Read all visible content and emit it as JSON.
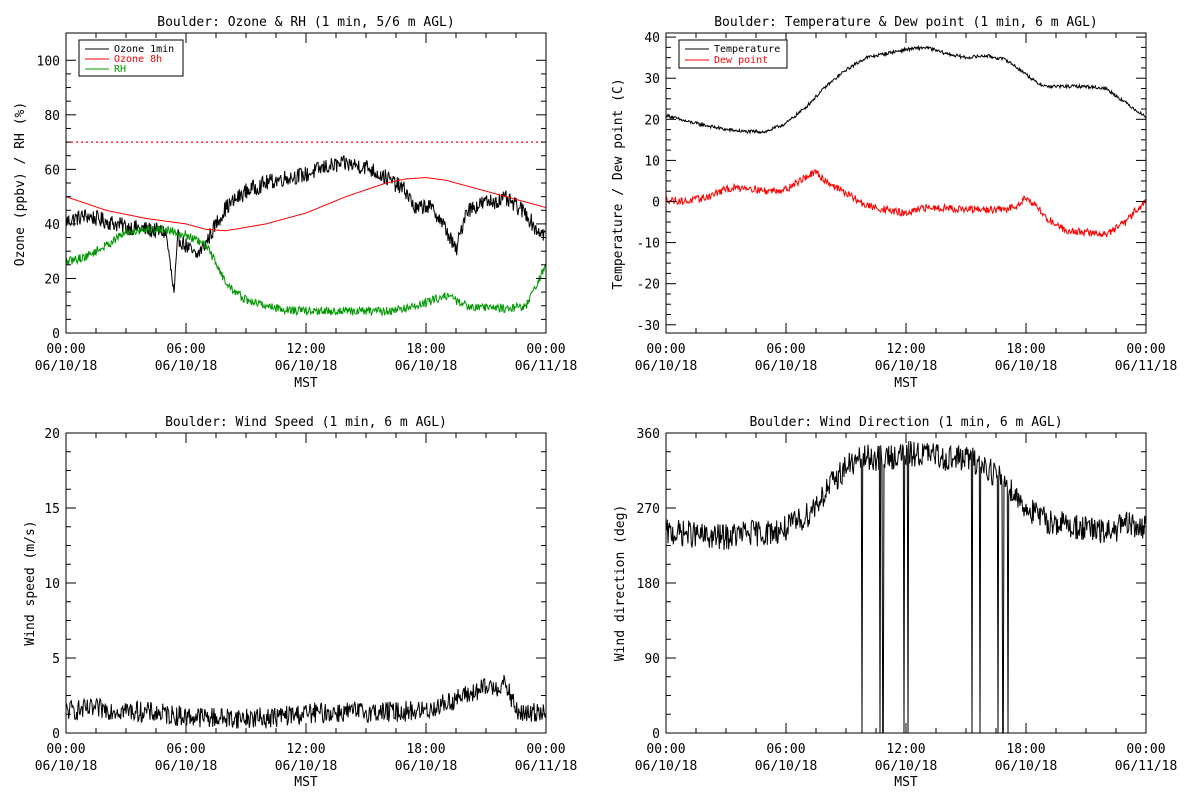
{
  "chart_data": [
    {
      "type": "line",
      "title": "Boulder: Ozone & RH (1 min, 5/6 m AGL)",
      "xlabel": "MST",
      "ylabel": "Ozone (ppbv) / RH (%)",
      "xlim": [
        0,
        24
      ],
      "ylim": [
        0,
        110
      ],
      "x_ticks": [
        {
          "x": 0,
          "time": "00:00",
          "date": "06/10/18"
        },
        {
          "x": 6,
          "time": "06:00",
          "date": "06/10/18"
        },
        {
          "x": 12,
          "time": "12:00",
          "date": "06/10/18"
        },
        {
          "x": 18,
          "time": "18:00",
          "date": "06/10/18"
        },
        {
          "x": 24,
          "time": "00:00",
          "date": "06/11/18"
        }
      ],
      "y_ticks": [
        0,
        20,
        40,
        60,
        80,
        100
      ],
      "legend_position": "top-left",
      "reference_lines": [
        {
          "y": 70,
          "color": "#ff0000",
          "style": "dotted"
        }
      ],
      "series": [
        {
          "name": "Ozone 1min",
          "color": "#000000",
          "noise": 3,
          "knots": [
            [
              0,
              41
            ],
            [
              1,
              43
            ],
            [
              2,
              41
            ],
            [
              3,
              39
            ],
            [
              4,
              38
            ],
            [
              5,
              37
            ],
            [
              5.4,
              14
            ],
            [
              5.6,
              35
            ],
            [
              6,
              32
            ],
            [
              6.5,
              28
            ],
            [
              7,
              33
            ],
            [
              7.5,
              40
            ],
            [
              8,
              46
            ],
            [
              9,
              52
            ],
            [
              10,
              55
            ],
            [
              11,
              57
            ],
            [
              12,
              58
            ],
            [
              13,
              61
            ],
            [
              14,
              62
            ],
            [
              15,
              61
            ],
            [
              16,
              57
            ],
            [
              17,
              52
            ],
            [
              17.5,
              45
            ],
            [
              18,
              47
            ],
            [
              18.5,
              44
            ],
            [
              19,
              38
            ],
            [
              19.5,
              30
            ],
            [
              20,
              45
            ],
            [
              21,
              48
            ],
            [
              22,
              49
            ],
            [
              23,
              44
            ],
            [
              23.5,
              38
            ],
            [
              24,
              36
            ]
          ]
        },
        {
          "name": "Ozone 8h",
          "color": "#ff0000",
          "noise": 0,
          "knots": [
            [
              0,
              50
            ],
            [
              2,
              45
            ],
            [
              4,
              42
            ],
            [
              6,
              40
            ],
            [
              7,
              38
            ],
            [
              8,
              37.5
            ],
            [
              10,
              40
            ],
            [
              12,
              44
            ],
            [
              14,
              50
            ],
            [
              16,
              55
            ],
            [
              17,
              56.5
            ],
            [
              18,
              57
            ],
            [
              19,
              56
            ],
            [
              20,
              54
            ],
            [
              22,
              50
            ],
            [
              24,
              46
            ]
          ]
        },
        {
          "name": "RH",
          "color": "#009900",
          "noise": 1.6,
          "knots": [
            [
              0,
              26
            ],
            [
              1,
              28
            ],
            [
              2,
              32
            ],
            [
              3,
              37
            ],
            [
              4,
              38
            ],
            [
              5,
              38
            ],
            [
              6,
              36
            ],
            [
              7,
              32
            ],
            [
              7.5,
              26
            ],
            [
              8,
              18
            ],
            [
              9,
              12
            ],
            [
              10,
              10
            ],
            [
              11,
              8.5
            ],
            [
              12,
              8
            ],
            [
              14,
              8
            ],
            [
              16,
              8
            ],
            [
              17,
              9
            ],
            [
              18,
              11
            ],
            [
              19,
              14
            ],
            [
              20,
              10
            ],
            [
              22,
              9
            ],
            [
              23,
              10
            ],
            [
              23.5,
              17
            ],
            [
              24,
              25
            ]
          ]
        }
      ]
    },
    {
      "type": "line",
      "title": "Boulder: Temperature & Dew point (1 min, 6 m AGL)",
      "xlabel": "MST",
      "ylabel": "Temperature / Dew point (C)",
      "xlim": [
        0,
        24
      ],
      "ylim": [
        -32,
        41
      ],
      "x_ticks": [
        {
          "x": 0,
          "time": "00:00",
          "date": "06/10/18"
        },
        {
          "x": 6,
          "time": "06:00",
          "date": "06/10/18"
        },
        {
          "x": 12,
          "time": "12:00",
          "date": "06/10/18"
        },
        {
          "x": 18,
          "time": "18:00",
          "date": "06/10/18"
        },
        {
          "x": 24,
          "time": "00:00",
          "date": "06/11/18"
        }
      ],
      "y_ticks": [
        -30,
        -20,
        -10,
        0,
        10,
        20,
        30,
        40
      ],
      "legend_position": "top-left",
      "series": [
        {
          "name": "Temperature",
          "color": "#000000",
          "noise": 0.4,
          "knots": [
            [
              0,
              21
            ],
            [
              1,
              19.5
            ],
            [
              2,
              18.5
            ],
            [
              3,
              17.5
            ],
            [
              4,
              17
            ],
            [
              5,
              17
            ],
            [
              6,
              19
            ],
            [
              7,
              23
            ],
            [
              8,
              28
            ],
            [
              9,
              32
            ],
            [
              10,
              35
            ],
            [
              11,
              36
            ],
            [
              12,
              37
            ],
            [
              13,
              37.5
            ],
            [
              14,
              36
            ],
            [
              15,
              35
            ],
            [
              16,
              35.5
            ],
            [
              17,
              34.5
            ],
            [
              18,
              31
            ],
            [
              18.5,
              29
            ],
            [
              19,
              28
            ],
            [
              20,
              28
            ],
            [
              21,
              28
            ],
            [
              22,
              27.5
            ],
            [
              23,
              24
            ],
            [
              24,
              20.5
            ]
          ]
        },
        {
          "name": "Dew point",
          "color": "#ff0000",
          "noise": 0.9,
          "knots": [
            [
              0,
              0.5
            ],
            [
              1,
              0
            ],
            [
              2,
              1
            ],
            [
              3,
              3
            ],
            [
              4,
              3.5
            ],
            [
              5,
              2.5
            ],
            [
              6,
              3
            ],
            [
              7,
              6
            ],
            [
              7.5,
              7
            ],
            [
              8,
              5
            ],
            [
              9,
              2
            ],
            [
              10,
              -1
            ],
            [
              11,
              -2
            ],
            [
              12,
              -3
            ],
            [
              13,
              -1.5
            ],
            [
              14,
              -1.5
            ],
            [
              15,
              -2
            ],
            [
              16,
              -2
            ],
            [
              17,
              -2
            ],
            [
              17.5,
              -1
            ],
            [
              18,
              1
            ],
            [
              18.5,
              -1
            ],
            [
              19,
              -4
            ],
            [
              20,
              -7
            ],
            [
              21,
              -7.5
            ],
            [
              22,
              -8
            ],
            [
              23,
              -5
            ],
            [
              23.5,
              -2
            ],
            [
              24,
              0
            ]
          ]
        }
      ]
    },
    {
      "type": "line",
      "title": "Boulder: Wind Speed (1 min, 6 m AGL)",
      "xlabel": "MST",
      "ylabel": "Wind speed (m/s)",
      "xlim": [
        0,
        24
      ],
      "ylim": [
        0,
        20
      ],
      "x_ticks": [
        {
          "x": 0,
          "time": "00:00",
          "date": "06/10/18"
        },
        {
          "x": 6,
          "time": "06:00",
          "date": "06/10/18"
        },
        {
          "x": 12,
          "time": "12:00",
          "date": "06/10/18"
        },
        {
          "x": 18,
          "time": "18:00",
          "date": "06/10/18"
        },
        {
          "x": 24,
          "time": "00:00",
          "date": "06/11/18"
        }
      ],
      "y_ticks": [
        0,
        5,
        10,
        15,
        20
      ],
      "series": [
        {
          "color": "#000000",
          "noise": 0.7,
          "floor": 0.2,
          "knots": [
            [
              0,
              1.5
            ],
            [
              2,
              1.6
            ],
            [
              4,
              1.4
            ],
            [
              6,
              1.1
            ],
            [
              8,
              1
            ],
            [
              10,
              1
            ],
            [
              12,
              1.3
            ],
            [
              14,
              1.4
            ],
            [
              16,
              1.4
            ],
            [
              18,
              1.5
            ],
            [
              19,
              2
            ],
            [
              20,
              2.5
            ],
            [
              21,
              3
            ],
            [
              22,
              3.2
            ],
            [
              22.5,
              1.5
            ],
            [
              23,
              1.2
            ],
            [
              24,
              1.6
            ]
          ]
        }
      ]
    },
    {
      "type": "line",
      "title": "Boulder: Wind Direction (1 min, 6 m AGL)",
      "xlabel": "MST",
      "ylabel": "Wind direction (deg)",
      "xlim": [
        0,
        24
      ],
      "ylim": [
        0,
        360
      ],
      "x_ticks": [
        {
          "x": 0,
          "time": "00:00",
          "date": "06/10/18"
        },
        {
          "x": 6,
          "time": "06:00",
          "date": "06/10/18"
        },
        {
          "x": 12,
          "time": "12:00",
          "date": "06/10/18"
        },
        {
          "x": 18,
          "time": "18:00",
          "date": "06/10/18"
        },
        {
          "x": 24,
          "time": "00:00",
          "date": "06/11/18"
        }
      ],
      "y_ticks": [
        0,
        90,
        180,
        270,
        360
      ],
      "series": [
        {
          "color": "#000000",
          "noise": 16,
          "floor": 0,
          "ceil": 360,
          "drops": [
            9.8,
            10.7,
            10.85,
            11.9,
            12.1,
            15.3,
            15.7,
            16.6,
            16.85,
            17.1
          ],
          "knots": [
            [
              0,
              240
            ],
            [
              1,
              240
            ],
            [
              2,
              235
            ],
            [
              3,
              235
            ],
            [
              4,
              240
            ],
            [
              5,
              240
            ],
            [
              6,
              245
            ],
            [
              7,
              260
            ],
            [
              8,
              290
            ],
            [
              9,
              320
            ],
            [
              10,
              330
            ],
            [
              11,
              330
            ],
            [
              12,
              335
            ],
            [
              13,
              335
            ],
            [
              14,
              330
            ],
            [
              15,
              330
            ],
            [
              16,
              320
            ],
            [
              17,
              300
            ],
            [
              18,
              270
            ],
            [
              19,
              255
            ],
            [
              20,
              250
            ],
            [
              21,
              245
            ],
            [
              22,
              240
            ],
            [
              23,
              250
            ],
            [
              24,
              245
            ]
          ]
        }
      ]
    }
  ]
}
